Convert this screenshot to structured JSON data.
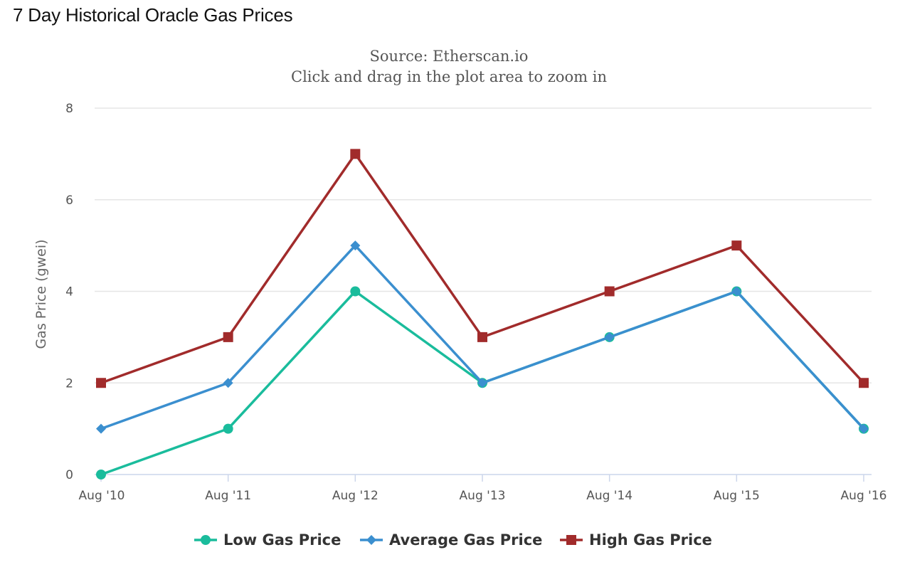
{
  "page": {
    "title": "7 Day Historical Oracle Gas Prices"
  },
  "chart_data": {
    "type": "line",
    "title": "",
    "subtitle_lines": [
      "Source: Etherscan.io",
      "Click and drag in the plot area to zoom in"
    ],
    "xlabel": "",
    "ylabel": "Gas Price (gwei)",
    "categories": [
      "Aug '10",
      "Aug '11",
      "Aug '12",
      "Aug '13",
      "Aug '14",
      "Aug '15",
      "Aug '16"
    ],
    "ylim": [
      0,
      8
    ],
    "yticks": [
      0,
      2,
      4,
      6,
      8
    ],
    "grid": true,
    "legend_position": "bottom",
    "series": [
      {
        "name": "Low Gas Price",
        "values": [
          0,
          1,
          4,
          2,
          3,
          4,
          1
        ],
        "color": "#1abc9c",
        "marker": "circle"
      },
      {
        "name": "Average Gas Price",
        "values": [
          1,
          2,
          5,
          2,
          3,
          4,
          1
        ],
        "color": "#3b8fcf",
        "marker": "diamond"
      },
      {
        "name": "High Gas Price",
        "values": [
          2,
          3,
          7,
          3,
          4,
          5,
          2
        ],
        "color": "#a12b2b",
        "marker": "square"
      }
    ]
  }
}
